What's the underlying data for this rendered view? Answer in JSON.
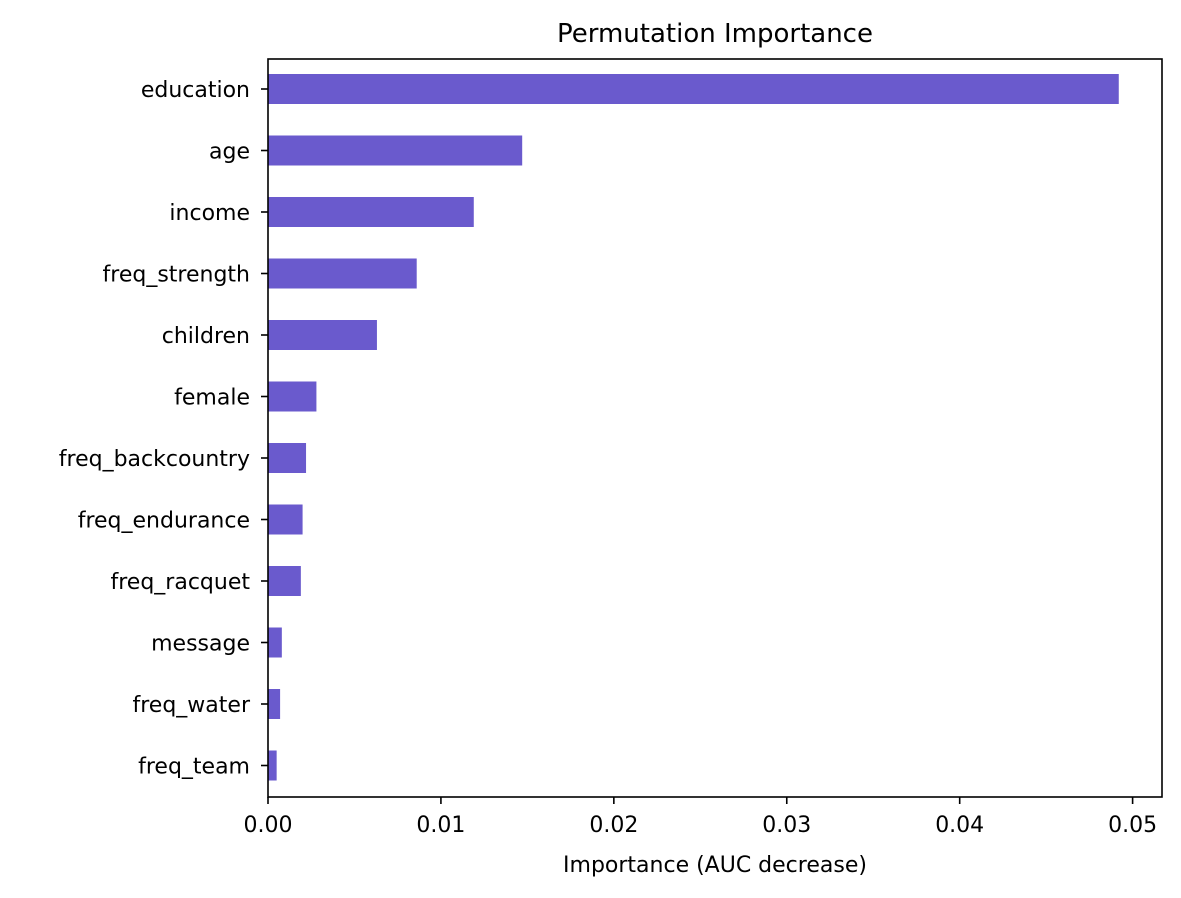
{
  "chart_data": {
    "type": "bar",
    "orientation": "horizontal",
    "title": "Permutation Importance",
    "xlabel": "Importance (AUC decrease)",
    "ylabel": "",
    "xlim": [
      0,
      0.0517
    ],
    "x_ticks": [
      {
        "value": 0.0,
        "label": "0.00"
      },
      {
        "value": 0.01,
        "label": "0.01"
      },
      {
        "value": 0.02,
        "label": "0.02"
      },
      {
        "value": 0.03,
        "label": "0.03"
      },
      {
        "value": 0.04,
        "label": "0.04"
      },
      {
        "value": 0.05,
        "label": "0.05"
      }
    ],
    "categories": [
      "education",
      "age",
      "income",
      "freq_strength",
      "children",
      "female",
      "freq_backcountry",
      "freq_endurance",
      "freq_racquet",
      "message",
      "freq_water",
      "freq_team"
    ],
    "values": [
      0.0492,
      0.0147,
      0.0119,
      0.0086,
      0.0063,
      0.0028,
      0.0022,
      0.002,
      0.0019,
      0.0008,
      0.0007,
      0.0005
    ],
    "bar_color": "#6a5acd",
    "grid": false,
    "legend": "none"
  }
}
